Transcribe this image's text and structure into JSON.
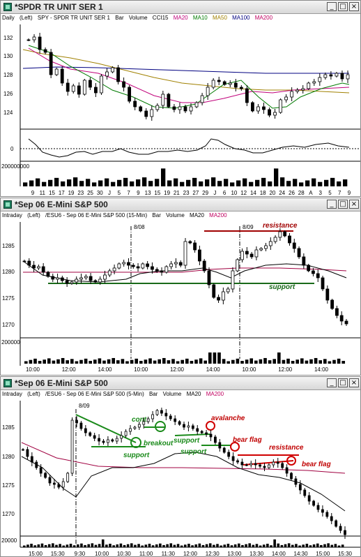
{
  "colors": {
    "accent_green": "#1a7a1a",
    "accent_red": "#c00000",
    "ma20": "#c0007a",
    "ma10": "#007a00",
    "ma50": "#a08000",
    "ma100": "#000080",
    "ma200": "#c00060",
    "titlebar": "#dcdcdc"
  },
  "window_buttons": {
    "minimize": "_",
    "maximize": "□",
    "close": "×"
  },
  "panes": [
    {
      "title": "*SPDR TR UNIT SER 1",
      "info": [
        "Daily",
        "(Left)",
        "SPY - SPDR TR UNIT SER 1",
        "Bar",
        "Volume",
        "CCI15"
      ],
      "legend": [
        {
          "label": "MA20",
          "color": "#c0007a"
        },
        {
          "label": "MA10",
          "color": "#007a00"
        },
        {
          "label": "MA50",
          "color": "#a08000"
        },
        {
          "label": "MA100",
          "color": "#000080"
        },
        {
          "label": "MA200",
          "color": "#c00060"
        }
      ],
      "price_ticks": [
        "132",
        "130",
        "128",
        "126",
        "124"
      ],
      "osc_tick": "0",
      "volume_tick": "200000000",
      "time_ticks": [
        "9",
        "11",
        "15",
        "17",
        "19",
        "23",
        "25",
        "30",
        "J",
        "5",
        "7",
        "9",
        "13",
        "15",
        "19",
        "21",
        "23",
        "27",
        "29",
        "J",
        "6",
        "10",
        "12",
        "14",
        "18",
        "20",
        "24",
        "26",
        "28",
        "A",
        "3",
        "5",
        "7",
        "9"
      ]
    },
    {
      "title": "*Sep 06  E-Mini S&P 500",
      "info": [
        "Intraday",
        "(Left)",
        "/ESU6 - Sep 06  E-Mini S&P 500 (15-Min)",
        "Bar",
        "Volume"
      ],
      "legend": [
        {
          "label": "MA20",
          "color": "#000000"
        },
        {
          "label": "MA200",
          "color": "#c00060"
        }
      ],
      "price_ticks": [
        "1285",
        "1280",
        "1275",
        "1270"
      ],
      "volume_tick": "200000",
      "time_ticks": [
        "10:00",
        "12:00",
        "14:00",
        "10:00",
        "12:00",
        "14:00",
        "10:00",
        "12:00",
        "14:00"
      ],
      "date_labels": [
        "8/08",
        "8/09"
      ],
      "annotations": {
        "resistance": "resistance",
        "support": "support"
      }
    },
    {
      "title": "*Sep 06  E-Mini S&P 500",
      "info": [
        "Intraday",
        "(Left)",
        "/ESU6 - Sep 06  E-Mini S&P 500 (5-Min)",
        "Bar",
        "Volume"
      ],
      "legend": [
        {
          "label": "MA20",
          "color": "#000000"
        },
        {
          "label": "MA200",
          "color": "#c00060"
        }
      ],
      "price_ticks": [
        "1285",
        "1280",
        "1275",
        "1270"
      ],
      "volume_tick": "20000",
      "time_ticks": [
        "15:00",
        "15:30",
        "9:30",
        "10:00",
        "10:30",
        "11:00",
        "11:30",
        "12:00",
        "12:30",
        "13:00",
        "13:30",
        "14:00",
        "14:30",
        "15:00",
        "15:30"
      ],
      "date_labels": [
        "8/09"
      ],
      "annotations": {
        "cont": "cont.",
        "breakout": "breakout",
        "support1": "support",
        "support2": "support",
        "support3": "support",
        "avalanche": "avalanche",
        "bear_flag1": "bear flag",
        "resistance": "resistance",
        "bear_flag2": "bear flag"
      }
    }
  ]
}
